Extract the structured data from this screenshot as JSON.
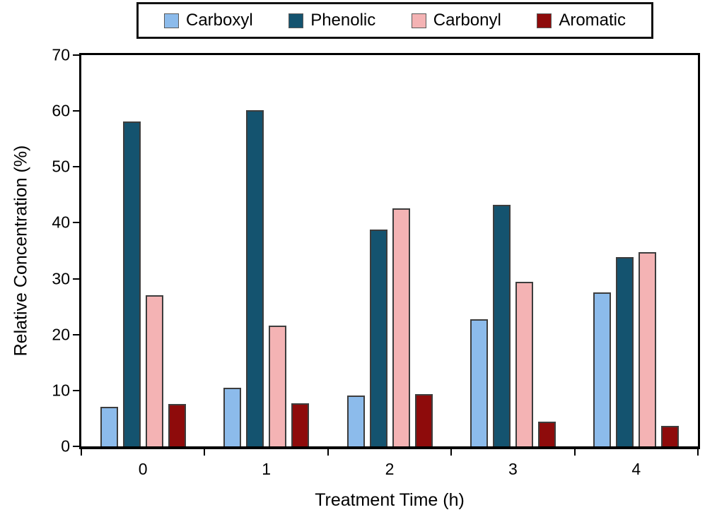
{
  "chart_data": {
    "type": "bar",
    "title": "",
    "xlabel": "Treatment Time (h)",
    "ylabel": "Relative Concentration (%)",
    "categories": [
      "0",
      "1",
      "2",
      "3",
      "4"
    ],
    "series": [
      {
        "name": "Carboxyl",
        "color": "#8CBBEB",
        "values": [
          7.1,
          10.5,
          9.1,
          22.8,
          27.6
        ]
      },
      {
        "name": "Phenolic",
        "color": "#14536F",
        "values": [
          58.1,
          60.1,
          38.8,
          43.2,
          33.9
        ]
      },
      {
        "name": "Carbonyl",
        "color": "#F4B3B4",
        "values": [
          27.1,
          21.6,
          42.6,
          29.5,
          34.7
        ]
      },
      {
        "name": "Aromatic",
        "color": "#8E0B0B",
        "values": [
          7.6,
          7.7,
          9.4,
          4.4,
          3.7
        ]
      }
    ],
    "ylim": [
      0,
      70
    ],
    "yticks": [
      0,
      10,
      20,
      30,
      40,
      50,
      60,
      70
    ],
    "grid": false,
    "legend_position": "top",
    "bar_border_color": "#3d3d3d",
    "axis_color": "#000000"
  }
}
